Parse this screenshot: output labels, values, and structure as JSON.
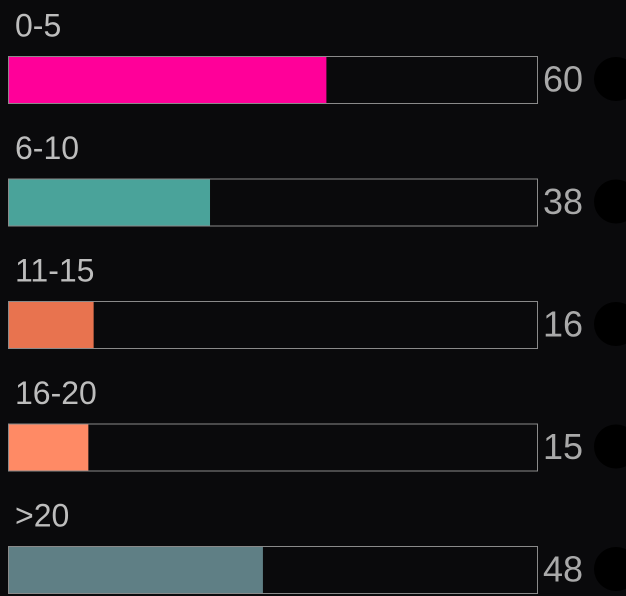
{
  "chart_data": {
    "type": "bar",
    "orientation": "horizontal",
    "categories": [
      "0-5",
      "6-10",
      "11-15",
      "16-20",
      ">20"
    ],
    "values": [
      60,
      38,
      16,
      15,
      48
    ],
    "colors": [
      "#ff0099",
      "#4aa39a",
      "#e8734f",
      "#ff8a65",
      "#5f7f85"
    ],
    "xlim": [
      0,
      100
    ]
  }
}
